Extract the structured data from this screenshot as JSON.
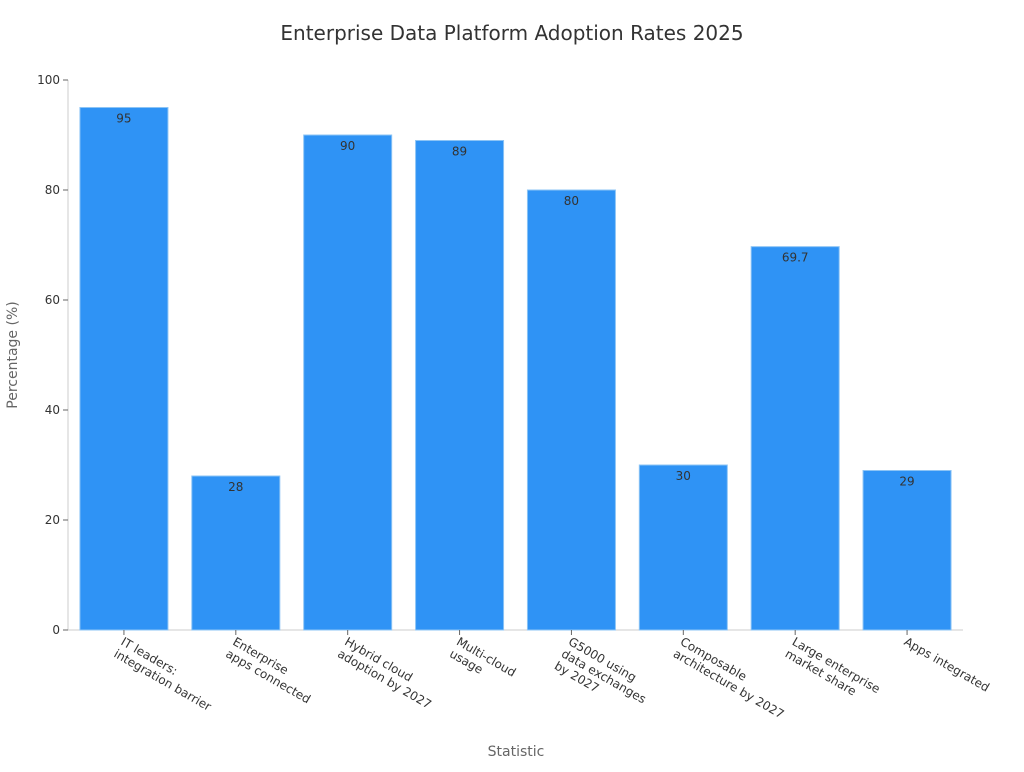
{
  "chart_data": {
    "type": "bar",
    "title": "Enterprise Data Platform Adoption Rates 2025",
    "xlabel": "Statistic",
    "ylabel": "Percentage (%)",
    "ylim": [
      0,
      100
    ],
    "yticks": [
      0,
      20,
      40,
      60,
      80,
      100
    ],
    "grid": false,
    "categories": [
      [
        "IT leaders:",
        "integration barrier"
      ],
      [
        "Enterprise",
        "apps connected"
      ],
      [
        "Hybrid cloud",
        "adoption by 2027"
      ],
      [
        "Multi-cloud",
        "usage"
      ],
      [
        "G5000 using",
        "data exchanges",
        "by 2027"
      ],
      [
        "Composable",
        "architecture by 2027"
      ],
      [
        "Large enterprise",
        "market share"
      ],
      [
        "Apps integrated"
      ]
    ],
    "values": [
      95,
      28,
      90,
      89,
      80,
      30,
      69.7,
      29
    ],
    "data_labels": [
      "95",
      "28",
      "90",
      "89",
      "80",
      "30",
      "69.7",
      "29"
    ],
    "colors": {
      "bar": "#2f93f5",
      "bar_edge": "#8cc4f5",
      "axis": "#cccccc",
      "text": "#333333",
      "label": "#666666"
    }
  }
}
